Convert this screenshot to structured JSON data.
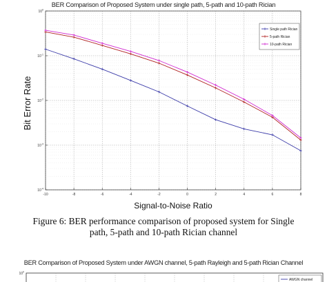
{
  "figure": {
    "caption_line1": "Figure 6: BER performance comparison of proposed system for Single",
    "caption_line2": "path, 5-path and 10-path Rician channel"
  },
  "chart_data": [
    {
      "type": "line",
      "title": "BER Comparison of Proposed System under single path, 5-path and 10-path Rician",
      "xlabel": "Signal-to-Noise Ratio",
      "ylabel": "Bit Error Rate",
      "xlim": [
        -10,
        8
      ],
      "ylim_exp": [
        -4,
        0
      ],
      "yscale": "log",
      "grid": true,
      "legend_position": "top-right",
      "x_ticks": [
        "-10",
        "-8",
        "-6",
        "-4",
        "-2",
        "0",
        "2",
        "4",
        "6",
        "8"
      ],
      "y_ticks": [
        "10^0",
        "10^-1",
        "10^-2",
        "10^-3",
        "10^-4"
      ],
      "x": [
        -10,
        -8,
        -6,
        -4,
        -2,
        0,
        2,
        4,
        6,
        8
      ],
      "series": [
        {
          "name": "Single path Rician",
          "color": "#3a3aa8",
          "marker": "plus",
          "values": [
            0.14,
            0.085,
            0.05,
            0.028,
            0.0155,
            0.0075,
            0.0037,
            0.0023,
            0.0017,
            0.00075
          ]
        },
        {
          "name": "5-path Rician",
          "color": "#b02020",
          "marker": "plus",
          "values": [
            0.34,
            0.26,
            0.17,
            0.11,
            0.068,
            0.037,
            0.019,
            0.0092,
            0.0042,
            0.0013
          ]
        },
        {
          "name": "10-path Rician",
          "color": "#d028d0",
          "marker": "plus",
          "values": [
            0.37,
            0.29,
            0.19,
            0.125,
            0.078,
            0.043,
            0.022,
            0.0106,
            0.0046,
            0.00145
          ]
        }
      ]
    },
    {
      "type": "line",
      "title": "BER Comparison of Proposed System under AWGN channel, 5-path Rayleigh and 5-path Rician Channel",
      "y_ticks": [
        "10^0"
      ],
      "series": [
        {
          "name": "AWGN channel",
          "color": "#3a3aa8",
          "values": []
        }
      ]
    }
  ]
}
